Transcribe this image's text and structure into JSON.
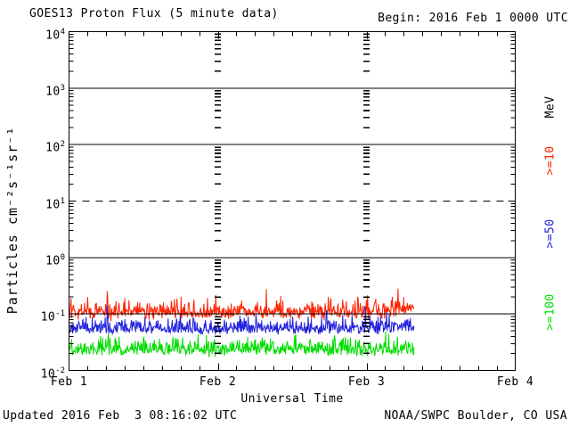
{
  "header": {
    "title": "GOES13 Proton Flux (5 minute data)",
    "begin": "Begin: 2016 Feb 1 0000 UTC"
  },
  "footer": {
    "updated": "Updated 2016 Feb  3 08:16:02 UTC",
    "credit": "NOAA/SWPC Boulder, CO USA"
  },
  "legend": {
    "unit_label": "MeV",
    "unit_color": "#000000",
    "items": [
      {
        "label": ">=10",
        "color": "#ff2200"
      },
      {
        "label": ">=50",
        "color": "#2222dd"
      },
      {
        "label": ">=100",
        "color": "#00dd00"
      }
    ]
  },
  "chart_data": {
    "type": "line",
    "title": "GOES13 Proton Flux (5 minute data)",
    "xlabel": "Universal Time",
    "ylabel": "Particles cm⁻²s⁻¹sr⁻¹",
    "x_tick_labels": [
      "Feb 1",
      "Feb 2",
      "Feb 3",
      "Feb 4"
    ],
    "x_range_days": 3,
    "x_minor_tick_hours": 3,
    "y_scale": "log",
    "ylim": [
      0.01,
      10000
    ],
    "y_exponent_labels": [
      "4",
      "3",
      "2",
      "1",
      "0",
      "-1",
      "-2"
    ],
    "gridlines": {
      "solid_at_exponents": [
        3,
        2,
        0,
        -1
      ],
      "dashed_at_exponents": [
        1
      ],
      "dotted_vertical_at_days": [
        1,
        2
      ]
    },
    "begin_time": "2016 Feb 1 0000 UTC",
    "cadence_minutes": 5,
    "data_end_day_offset": 2.32,
    "series": [
      {
        "name": ">=10 MeV",
        "color": "#ff2200",
        "approx_median": 0.1,
        "approx_range": [
          0.074,
          0.38
        ],
        "model": {
          "seed": 101,
          "base_log": -1.04,
          "noise_sigma": 0.04,
          "abs_sigma": 0.11,
          "spike_prob": 0.06,
          "spike_amp": 0.28,
          "clamp_log": [
            -1.13,
            -0.42
          ],
          "end_rise": {
            "from_day": 2.0,
            "rate": 0.25
          }
        }
      },
      {
        "name": ">=50 MeV",
        "color": "#2222dd",
        "approx_median": 0.055,
        "approx_range": [
          0.043,
          0.14
        ],
        "model": {
          "seed": 202,
          "base_log": -1.34,
          "noise_sigma": 0.015,
          "abs_sigma": 0.12,
          "spike_prob": 0.05,
          "spike_amp": 0.22,
          "clamp_log": [
            -1.37,
            -0.85
          ],
          "end_rise": {
            "from_day": 2.0,
            "rate": 0.1
          }
        }
      },
      {
        "name": ">=100 MeV",
        "color": "#00dd00",
        "approx_median": 0.025,
        "approx_range": [
          0.015,
          0.066
        ],
        "model": {
          "seed": 303,
          "base_log": -1.71,
          "noise_sigma": 0.025,
          "abs_sigma": 0.13,
          "spike_prob": 0.05,
          "spike_amp": 0.22,
          "clamp_log": [
            -1.82,
            -1.18
          ],
          "end_rise": {
            "from_day": 2.0,
            "rate": 0.0
          }
        }
      }
    ]
  }
}
